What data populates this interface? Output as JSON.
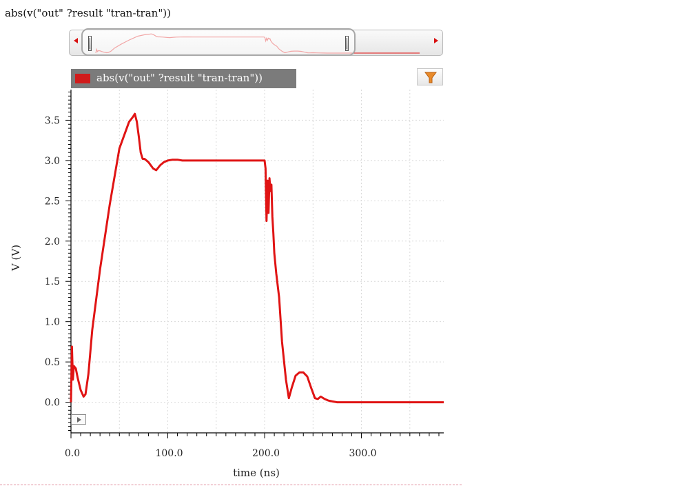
{
  "window": {
    "title": "abs(v(\"out\" ?result \"tran-tran\"))"
  },
  "navigator": {
    "scroll_left_icon": "arrow-left-icon",
    "scroll_right_icon": "arrow-right-icon"
  },
  "legend": {
    "label": "abs(v(\"out\" ?result \"tran-tran\"))",
    "color": "#d11b1b",
    "filter_icon": "filter-funnel-icon"
  },
  "chart_data": {
    "type": "line",
    "title": "",
    "xlabel": "time (ns)",
    "ylabel": "V (V)",
    "xlim": [
      0,
      385
    ],
    "ylim": [
      -0.38,
      3.88
    ],
    "xticks": [
      0,
      100,
      200,
      300
    ],
    "xtick_labels": [
      "0.0",
      "100.0",
      "200.0",
      "300.0"
    ],
    "yticks": [
      0.0,
      0.5,
      1.0,
      1.5,
      2.0,
      2.5,
      3.0,
      3.5
    ],
    "ytick_labels": [
      "0.0",
      "0.5",
      "1.0",
      "1.5",
      "2.0",
      "2.5",
      "3.0",
      "3.5"
    ],
    "grid": true,
    "series": [
      {
        "name": "abs(v(\"out\" ?result \"tran-tran\"))",
        "color": "#e01414",
        "x": [
          0,
          1,
          2,
          3,
          5,
          7,
          10,
          13,
          15,
          18,
          22,
          30,
          40,
          50,
          60,
          64,
          66,
          68,
          70,
          72,
          74,
          76,
          80,
          85,
          88,
          92,
          96,
          100,
          105,
          110,
          115,
          120,
          140,
          160,
          180,
          200,
          201,
          202,
          203,
          204,
          205,
          206,
          207,
          208,
          209,
          210,
          212,
          215,
          218,
          222,
          225,
          228,
          232,
          236,
          240,
          244,
          248,
          252,
          255,
          258,
          262,
          266,
          270,
          275,
          280,
          300,
          340,
          385
        ],
        "y": [
          0.0,
          0.69,
          0.28,
          0.45,
          0.42,
          0.3,
          0.15,
          0.07,
          0.1,
          0.35,
          0.9,
          1.65,
          2.45,
          3.15,
          3.48,
          3.54,
          3.58,
          3.48,
          3.3,
          3.1,
          3.02,
          3.02,
          2.98,
          2.9,
          2.88,
          2.94,
          2.98,
          3.0,
          3.01,
          3.01,
          3.0,
          3.0,
          3.0,
          3.0,
          3.0,
          3.0,
          2.9,
          2.25,
          2.75,
          2.35,
          2.78,
          2.62,
          2.7,
          2.3,
          2.1,
          1.85,
          1.6,
          1.3,
          0.75,
          0.28,
          0.05,
          0.18,
          0.33,
          0.37,
          0.37,
          0.32,
          0.18,
          0.05,
          0.04,
          0.07,
          0.04,
          0.02,
          0.01,
          0.0,
          0.0,
          0.0,
          0.0,
          0.0
        ]
      }
    ]
  }
}
